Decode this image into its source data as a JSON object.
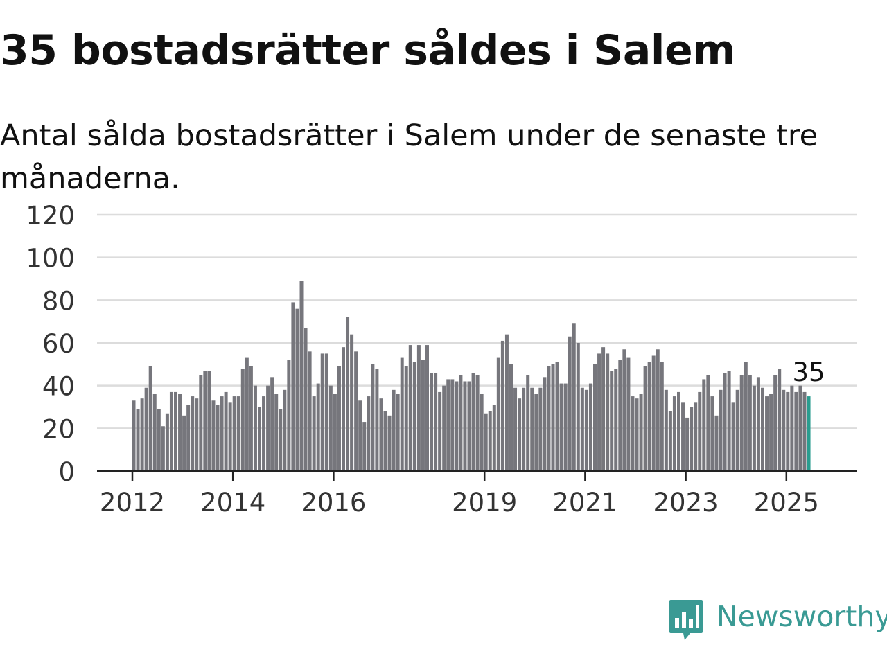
{
  "title": "35 bostadsrätter såldes i Salem",
  "subtitle": "Antal sålda bostadsrätter i Salem under de senaste tre månaderna.",
  "brand": {
    "name": "Newsworthy",
    "color": "#3a9a94",
    "icon": "newsworthy-logo-icon"
  },
  "chart_data": {
    "type": "bar",
    "ylim": [
      0,
      120
    ],
    "yticks": [
      "0",
      "20",
      "40",
      "60",
      "80",
      "100",
      "120"
    ],
    "xticks": [
      {
        "label": "2012",
        "year": 2012
      },
      {
        "label": "2014",
        "year": 2014
      },
      {
        "label": "2016",
        "year": 2016
      },
      {
        "label": "2019",
        "year": 2019
      },
      {
        "label": "2021",
        "year": 2021
      },
      {
        "label": "2023",
        "year": 2023
      },
      {
        "label": "2025",
        "year": 2025
      }
    ],
    "grid": true,
    "start": "2012-01",
    "frequency": "monthly",
    "bar_color": "#76767c",
    "highlight_color": "#2a9d8f",
    "annotation": "35",
    "values": [
      33,
      29,
      34,
      39,
      49,
      36,
      29,
      21,
      27,
      37,
      37,
      36,
      26,
      31,
      35,
      34,
      45,
      47,
      47,
      33,
      31,
      35,
      37,
      32,
      35,
      35,
      48,
      53,
      49,
      40,
      30,
      35,
      40,
      44,
      36,
      29,
      38,
      52,
      79,
      76,
      89,
      67,
      56,
      35,
      41,
      55,
      55,
      40,
      36,
      49,
      58,
      72,
      64,
      56,
      33,
      23,
      35,
      50,
      48,
      34,
      28,
      26,
      38,
      36,
      53,
      49,
      59,
      51,
      59,
      52,
      59,
      46,
      46,
      37,
      40,
      43,
      43,
      42,
      45,
      42,
      42,
      46,
      45,
      36,
      27,
      28,
      31,
      53,
      61,
      64,
      50,
      39,
      34,
      39,
      45,
      39,
      36,
      39,
      44,
      49,
      50,
      51,
      41,
      41,
      63,
      69,
      60,
      39,
      38,
      41,
      50,
      55,
      58,
      55,
      47,
      48,
      52,
      57,
      53,
      35,
      34,
      36,
      49,
      51,
      54,
      57,
      51,
      38,
      28,
      35,
      37,
      32,
      25,
      30,
      32,
      37,
      43,
      45,
      35,
      26,
      38,
      46,
      47,
      32,
      38,
      45,
      51,
      45,
      40,
      44,
      39,
      35,
      36,
      45,
      48,
      38,
      37,
      40,
      37,
      40,
      37,
      35
    ]
  }
}
